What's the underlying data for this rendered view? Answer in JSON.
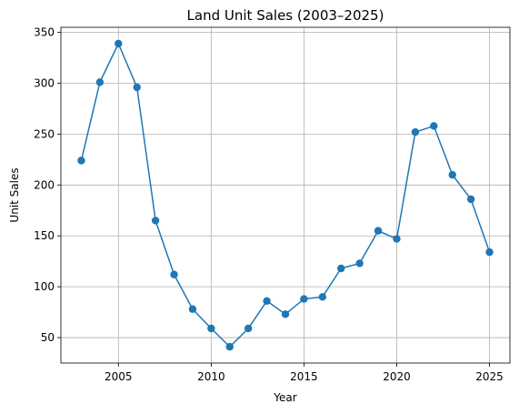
{
  "chart_data": {
    "type": "line",
    "title": "Land Unit Sales (2003–2025)",
    "xlabel": "Year",
    "ylabel": "Unit Sales",
    "xlim": [
      2001.9,
      2026.1
    ],
    "ylim": [
      25,
      355
    ],
    "x_ticks": [
      2005,
      2010,
      2015,
      2020,
      2025
    ],
    "y_ticks": [
      50,
      100,
      150,
      200,
      250,
      300,
      350
    ],
    "grid": true,
    "marker": "circle",
    "series": [
      {
        "color": "#1f77b4",
        "x": [
          2003,
          2004,
          2005,
          2006,
          2007,
          2008,
          2009,
          2010,
          2011,
          2012,
          2013,
          2014,
          2015,
          2016,
          2017,
          2018,
          2019,
          2020,
          2021,
          2022,
          2023,
          2024,
          2025
        ],
        "values": [
          224,
          301,
          339,
          296,
          165,
          112,
          78,
          59,
          41,
          59,
          86,
          73,
          88,
          90,
          118,
          123,
          155,
          147,
          252,
          258,
          210,
          186,
          134
        ]
      }
    ]
  }
}
